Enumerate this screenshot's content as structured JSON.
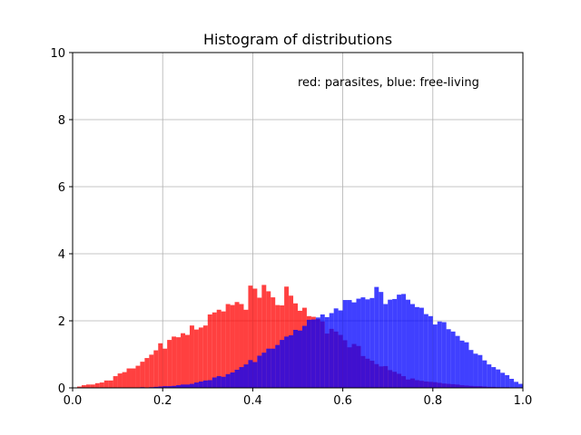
{
  "chart_data": {
    "type": "bar",
    "title": "Histogram of distributions",
    "annotation": "red: parasites, blue: free-living",
    "xlim": [
      0,
      1
    ],
    "ylim": [
      0,
      10
    ],
    "xticks": [
      0.0,
      0.2,
      0.4,
      0.6,
      0.8,
      1.0
    ],
    "xtick_labels": [
      "0.0",
      "0.2",
      "0.4",
      "0.6",
      "0.8",
      "1.0"
    ],
    "yticks": [
      0,
      2,
      4,
      6,
      8,
      10
    ],
    "ytick_labels": [
      "0",
      "2",
      "4",
      "6",
      "8",
      "10"
    ],
    "grid": true,
    "bin_width": 0.01,
    "colors": {
      "red": "#ff0000",
      "blue": "#0000ff",
      "axis": "#000000",
      "grid": "#b0b0b0",
      "background": "#ffffff"
    },
    "bar_opacity": 0.75,
    "series": [
      {
        "color_key": "red",
        "x_start": 0.0,
        "values": [
          0.0,
          0.04,
          0.08,
          0.1,
          0.1,
          0.14,
          0.16,
          0.22,
          0.22,
          0.35,
          0.43,
          0.47,
          0.58,
          0.58,
          0.66,
          0.78,
          0.89,
          0.99,
          1.12,
          1.33,
          1.17,
          1.43,
          1.53,
          1.51,
          1.63,
          1.58,
          1.86,
          1.74,
          1.8,
          1.86,
          2.19,
          2.25,
          2.33,
          2.28,
          2.5,
          2.47,
          2.56,
          2.5,
          2.33,
          3.05,
          2.96,
          2.69,
          3.07,
          2.88,
          2.7,
          2.47,
          2.46,
          3.02,
          2.75,
          2.52,
          2.3,
          2.39,
          2.14,
          2.12,
          2.05,
          1.98,
          1.62,
          1.76,
          1.68,
          1.58,
          1.42,
          1.21,
          1.31,
          1.25,
          0.95,
          0.87,
          0.81,
          0.71,
          0.64,
          0.65,
          0.53,
          0.48,
          0.42,
          0.35,
          0.25,
          0.28,
          0.23,
          0.21,
          0.19,
          0.18,
          0.17,
          0.15,
          0.13,
          0.12,
          0.11,
          0.1,
          0.08,
          0.07,
          0.06,
          0.05,
          0.05,
          0.04,
          0.03,
          0.03,
          0.02,
          0.02,
          0.02,
          0.01,
          0.01,
          0.01
        ]
      },
      {
        "color_key": "blue",
        "x_start": 0.0,
        "values": [
          0.0,
          0.0,
          0.0,
          0.0,
          0.0,
          0.0,
          0.0,
          0.0,
          0.0,
          0.0,
          0.0,
          0.0,
          0.0,
          0.0,
          0.01,
          0.02,
          0.01,
          0.02,
          0.03,
          0.04,
          0.05,
          0.05,
          0.06,
          0.08,
          0.1,
          0.1,
          0.12,
          0.16,
          0.19,
          0.22,
          0.23,
          0.31,
          0.35,
          0.33,
          0.41,
          0.46,
          0.54,
          0.62,
          0.7,
          0.83,
          0.77,
          0.96,
          1.05,
          1.17,
          1.17,
          1.28,
          1.43,
          1.53,
          1.57,
          1.73,
          1.71,
          1.85,
          2.03,
          2.04,
          2.1,
          2.19,
          2.11,
          2.23,
          2.37,
          2.31,
          2.62,
          2.62,
          2.55,
          2.66,
          2.7,
          2.64,
          2.68,
          3.01,
          2.86,
          2.5,
          2.63,
          2.65,
          2.78,
          2.8,
          2.63,
          2.5,
          2.41,
          2.39,
          2.2,
          2.14,
          1.89,
          1.98,
          1.96,
          1.75,
          1.68,
          1.55,
          1.41,
          1.36,
          1.13,
          1.02,
          0.98,
          0.82,
          0.7,
          0.62,
          0.55,
          0.45,
          0.38,
          0.27,
          0.18,
          0.12
        ]
      }
    ]
  }
}
